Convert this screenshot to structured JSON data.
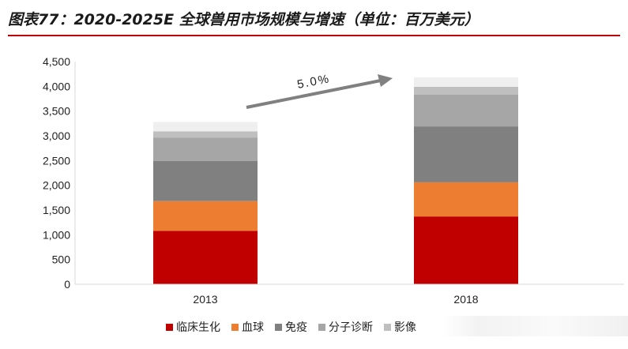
{
  "title": "图表77：2020-2025E 全球兽用市场规模与增速（单位：百万美元）",
  "colors": {
    "title_rule": "#c00000",
    "arrow": "#808080"
  },
  "chart_data": {
    "type": "bar",
    "stacked": true,
    "categories": [
      "2013",
      "2018"
    ],
    "series": [
      {
        "name": "临床生化",
        "color": "#c00000",
        "values": [
          1080,
          1370
        ]
      },
      {
        "name": "血球",
        "color": "#ed7d31",
        "values": [
          600,
          690
        ]
      },
      {
        "name": "免疫",
        "color": "#808080",
        "values": [
          810,
          1130
        ]
      },
      {
        "name": "分子诊断",
        "color": "#a6a6a6",
        "values": [
          470,
          640
        ]
      },
      {
        "name": "影像",
        "color": "#bfbfbf",
        "values": [
          130,
          160
        ]
      },
      {
        "name": "",
        "color": "#efefef",
        "values": [
          190,
          190
        ]
      }
    ],
    "ylim": [
      0,
      4500
    ],
    "yticks": [
      0,
      500,
      1000,
      1500,
      2000,
      2500,
      3000,
      3500,
      4000,
      4500
    ],
    "ytick_labels": [
      "0",
      "500",
      "1,000",
      "1,500",
      "2,000",
      "2,500",
      "3,000",
      "3,500",
      "4,000",
      "4,500"
    ],
    "annotation": "5.0%",
    "legend_position": "bottom"
  }
}
